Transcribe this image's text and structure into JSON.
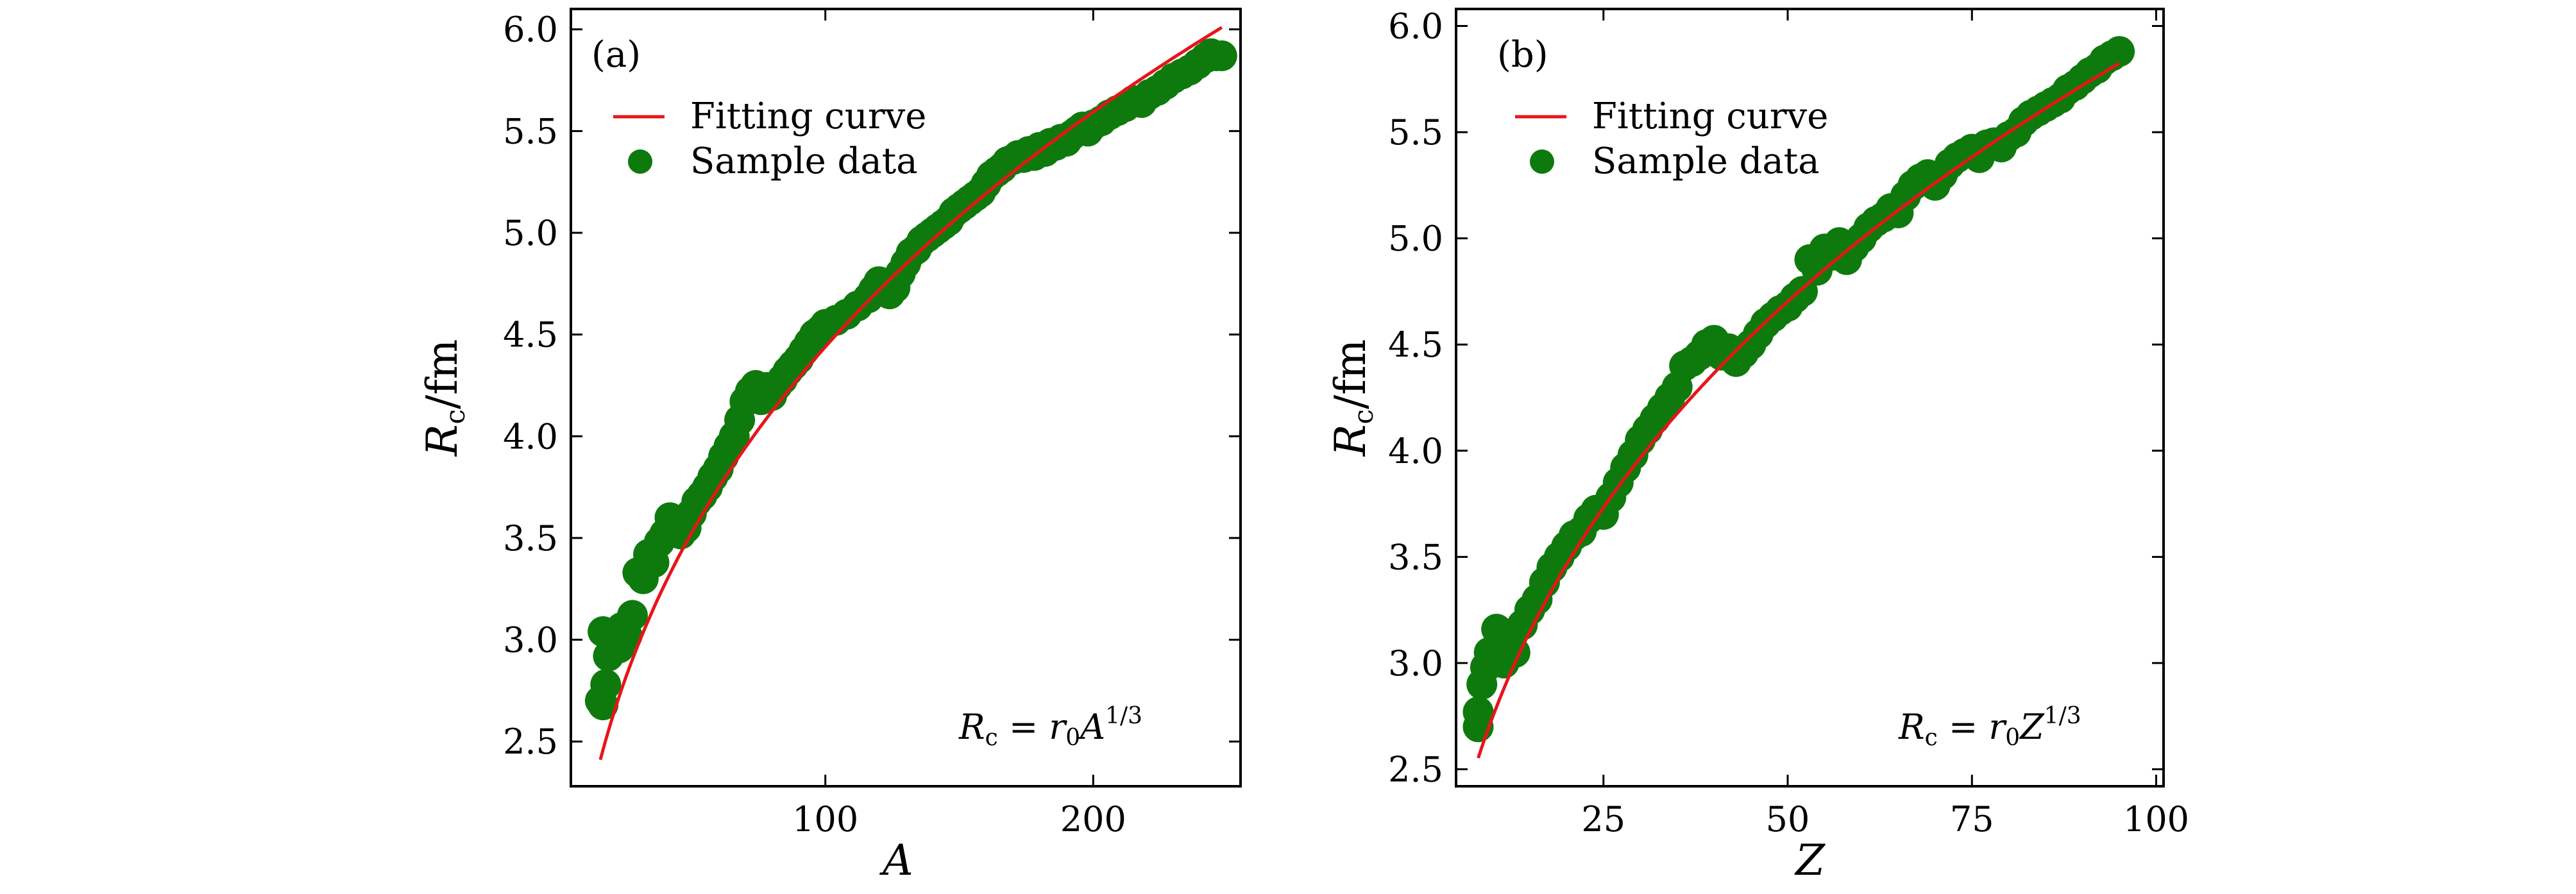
{
  "figure": {
    "panels": [
      "a",
      "b"
    ]
  },
  "chart_data": [
    {
      "type": "scatter",
      "panel_label": "(a)",
      "xlabel": "A",
      "ylabel": "R",
      "ylabel_sub": "c",
      "ylabel_unit": "/fm",
      "xlim": [
        5,
        255
      ],
      "ylim": [
        2.28,
        6.1
      ],
      "xticks": [
        100,
        200
      ],
      "xtick_labels": [
        "100",
        "200"
      ],
      "yticks": [
        2.5,
        3.0,
        3.5,
        4.0,
        4.5,
        5.0,
        5.5,
        6.0
      ],
      "ytick_labels": [
        "2.5",
        "3.0",
        "3.5",
        "4.0",
        "4.5",
        "5.0",
        "5.5",
        "6.0"
      ],
      "legend": {
        "location": "top-left",
        "entries": [
          {
            "label": "Fitting curve",
            "kind": "line",
            "color": "#e8141a"
          },
          {
            "label": "Sample data",
            "kind": "marker",
            "color": "#0e7a0d"
          }
        ]
      },
      "annotation": {
        "lhs": "R",
        "lhs_sub": "c",
        "rhs": " = r",
        "rhs_sub": "0",
        "var": "A",
        "exp": "1/3"
      },
      "fit": {
        "name": "Fitting curve",
        "r0": 0.9565,
        "x_range": [
          16,
          248
        ],
        "color": "#e8141a"
      },
      "series": [
        {
          "name": "Sample data",
          "color": "#0e7a0d",
          "x": [
            16,
            17,
            17,
            18,
            19,
            20,
            22,
            23,
            24,
            26,
            28,
            30,
            32,
            34,
            36,
            38,
            40,
            42,
            44,
            46,
            48,
            50,
            52,
            54,
            56,
            58,
            60,
            62,
            64,
            66,
            68,
            70,
            72,
            74,
            76,
            78,
            80,
            82,
            84,
            86,
            88,
            90,
            92,
            94,
            96,
            98,
            100,
            104,
            108,
            112,
            116,
            118,
            120,
            122,
            124,
            126,
            128,
            130,
            132,
            134,
            136,
            138,
            140,
            142,
            144,
            146,
            148,
            150,
            152,
            154,
            156,
            158,
            160,
            162,
            164,
            166,
            168,
            170,
            172,
            174,
            176,
            178,
            180,
            182,
            184,
            186,
            188,
            190,
            192,
            194,
            196,
            198,
            200,
            203,
            206,
            209,
            212,
            215,
            218,
            221,
            224,
            227,
            230,
            233,
            236,
            239,
            242,
            244,
            246,
            248
          ],
          "y": [
            2.7,
            2.68,
            3.04,
            2.78,
            2.92,
            3.03,
            3.0,
            2.96,
            3.06,
            3.02,
            3.12,
            3.33,
            3.3,
            3.42,
            3.38,
            3.48,
            3.52,
            3.6,
            3.55,
            3.52,
            3.55,
            3.62,
            3.68,
            3.71,
            3.75,
            3.8,
            3.84,
            3.9,
            3.95,
            4.0,
            4.08,
            4.17,
            4.22,
            4.25,
            4.18,
            4.24,
            4.2,
            4.25,
            4.28,
            4.32,
            4.35,
            4.38,
            4.42,
            4.46,
            4.5,
            4.52,
            4.55,
            4.57,
            4.6,
            4.64,
            4.68,
            4.72,
            4.76,
            4.74,
            4.7,
            4.73,
            4.8,
            4.85,
            4.9,
            4.92,
            4.96,
            4.98,
            5.0,
            5.02,
            5.04,
            5.06,
            5.1,
            5.12,
            5.14,
            5.16,
            5.18,
            5.2,
            5.24,
            5.28,
            5.3,
            5.32,
            5.35,
            5.36,
            5.38,
            5.37,
            5.4,
            5.38,
            5.42,
            5.4,
            5.44,
            5.43,
            5.46,
            5.45,
            5.48,
            5.5,
            5.52,
            5.5,
            5.53,
            5.55,
            5.58,
            5.6,
            5.62,
            5.65,
            5.64,
            5.68,
            5.7,
            5.73,
            5.76,
            5.78,
            5.8,
            5.83,
            5.86,
            5.88,
            5.87,
            5.87
          ]
        }
      ]
    },
    {
      "type": "scatter",
      "panel_label": "(b)",
      "xlabel": "Z",
      "ylabel": "R",
      "ylabel_sub": "c",
      "ylabel_unit": "/fm",
      "xlim": [
        5,
        101
      ],
      "ylim": [
        2.42,
        6.08
      ],
      "xticks": [
        25,
        50,
        75,
        100
      ],
      "xtick_labels": [
        "25",
        "50",
        "75",
        "100"
      ],
      "yticks": [
        2.5,
        3.0,
        3.5,
        4.0,
        4.5,
        5.0,
        5.5,
        6.0
      ],
      "ytick_labels": [
        "2.5",
        "3.0",
        "3.5",
        "4.0",
        "4.5",
        "5.0",
        "5.5",
        "6.0"
      ],
      "legend": {
        "location": "top-left",
        "entries": [
          {
            "label": "Fitting curve",
            "kind": "line",
            "color": "#e8141a"
          },
          {
            "label": "Sample data",
            "kind": "marker",
            "color": "#0e7a0d"
          }
        ]
      },
      "annotation": {
        "lhs": "R",
        "lhs_sub": "c",
        "rhs": " = r",
        "rhs_sub": "0",
        "var": "Z",
        "exp": "1/3"
      },
      "fit": {
        "name": "Fitting curve",
        "r0": 1.2764,
        "x_range": [
          8,
          95
        ],
        "color": "#e8141a"
      },
      "series": [
        {
          "name": "Sample data",
          "color": "#0e7a0d",
          "x": [
            8,
            8,
            8.5,
            9,
            9.5,
            10,
            10.5,
            11,
            11.5,
            12,
            12.5,
            13,
            14,
            15,
            16,
            17,
            18,
            19,
            20,
            21,
            22,
            23,
            24,
            25,
            26,
            27,
            28,
            29,
            30,
            31,
            32,
            33,
            34,
            35,
            36,
            37,
            38,
            39,
            40,
            41,
            42,
            43,
            44,
            45,
            46,
            47,
            48,
            49,
            50,
            51,
            52,
            53,
            54,
            55,
            56,
            57,
            58,
            59,
            60,
            61,
            62,
            63,
            64,
            65,
            66,
            67,
            68,
            69,
            70,
            71,
            72,
            73,
            74,
            75,
            76,
            77,
            78,
            79,
            80,
            81,
            82,
            83,
            84,
            85,
            86,
            87,
            88,
            89,
            90,
            91,
            92,
            93,
            94,
            95
          ],
          "y": [
            2.77,
            2.7,
            2.9,
            2.98,
            3.05,
            3.02,
            3.16,
            3.1,
            3.0,
            3.08,
            3.12,
            3.05,
            3.18,
            3.25,
            3.3,
            3.38,
            3.45,
            3.5,
            3.55,
            3.6,
            3.62,
            3.68,
            3.72,
            3.7,
            3.78,
            3.85,
            3.92,
            3.98,
            4.05,
            4.1,
            4.15,
            4.2,
            4.25,
            4.3,
            4.4,
            4.42,
            4.45,
            4.5,
            4.52,
            4.45,
            4.48,
            4.42,
            4.46,
            4.5,
            4.55,
            4.6,
            4.63,
            4.66,
            4.68,
            4.72,
            4.75,
            4.9,
            4.85,
            4.95,
            4.92,
            4.98,
            4.9,
            4.96,
            5.0,
            5.05,
            5.08,
            5.1,
            5.14,
            5.12,
            5.2,
            5.25,
            5.28,
            5.3,
            5.25,
            5.3,
            5.35,
            5.38,
            5.4,
            5.42,
            5.38,
            5.44,
            5.45,
            5.43,
            5.48,
            5.5,
            5.55,
            5.58,
            5.6,
            5.62,
            5.64,
            5.66,
            5.7,
            5.72,
            5.75,
            5.78,
            5.8,
            5.84,
            5.86,
            5.88
          ]
        }
      ]
    }
  ]
}
